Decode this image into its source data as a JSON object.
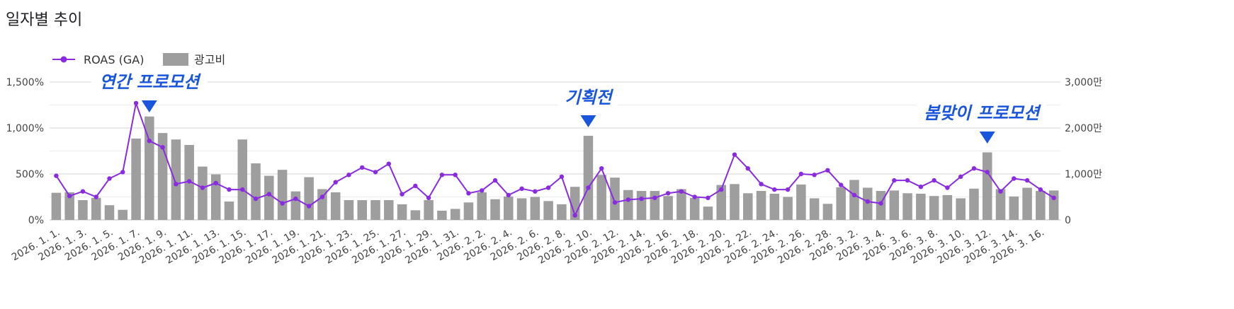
{
  "page": {
    "title": "일자별 추이"
  },
  "chart_data": {
    "type": "bar+line",
    "title": "일자별 추이",
    "legend": {
      "placement": "top-left",
      "items": [
        {
          "name": "ROAS (GA)",
          "kind": "line",
          "color": "#8a2be2"
        },
        {
          "name": "광고비",
          "kind": "bar",
          "color": "#9e9e9e"
        }
      ]
    },
    "grid": true,
    "y_left": {
      "ticks": [
        0,
        500,
        1000,
        1500
      ],
      "tick_labels": [
        "0%",
        "500%",
        "1,000%",
        "1,500%"
      ],
      "lim": [
        0,
        1500
      ]
    },
    "y_right": {
      "ticks": [
        0,
        1000,
        2000,
        3000
      ],
      "tick_labels": [
        "0",
        "1,000만",
        "2,000만",
        "3,000만"
      ],
      "lim": [
        0,
        3000
      ]
    },
    "x_tick_labels": [
      "2026. 1. 1.",
      "2026. 1. 3.",
      "2026. 1. 5.",
      "2026. 1. 7.",
      "2026. 1. 9.",
      "2026. 1. 11.",
      "2026. 1. 13.",
      "2026. 1. 15.",
      "2026. 1. 17.",
      "2026. 1. 19.",
      "2026. 1. 21.",
      "2026. 1. 23.",
      "2026. 1. 25.",
      "2026. 1. 27.",
      "2026. 1. 29.",
      "2026. 1. 31.",
      "2026. 2. 2.",
      "2026. 2. 4.",
      "2026. 2. 6.",
      "2026. 2. 8.",
      "2026. 2. 10.",
      "2026. 2. 12.",
      "2026. 2. 14.",
      "2026. 2. 16.",
      "2026. 2. 18.",
      "2026. 2. 20.",
      "2026. 2. 22.",
      "2026. 2. 24.",
      "2026. 2. 26.",
      "2026. 2. 28.",
      "2026. 3. 2.",
      "2026. 3. 4.",
      "2026. 3. 6.",
      "2026. 3. 8.",
      "2026. 3. 10.",
      "2026. 3. 12.",
      "2026. 3. 14.",
      "2026. 3. 16."
    ],
    "x_dates": [
      "2026-01-01",
      "2026-01-02",
      "2026-01-03",
      "2026-01-04",
      "2026-01-05",
      "2026-01-06",
      "2026-01-07",
      "2026-01-08",
      "2026-01-09",
      "2026-01-10",
      "2026-01-11",
      "2026-01-12",
      "2026-01-13",
      "2026-01-14",
      "2026-01-15",
      "2026-01-16",
      "2026-01-17",
      "2026-01-18",
      "2026-01-19",
      "2026-01-20",
      "2026-01-21",
      "2026-01-22",
      "2026-01-23",
      "2026-01-24",
      "2026-01-25",
      "2026-01-26",
      "2026-01-27",
      "2026-01-28",
      "2026-01-29",
      "2026-01-30",
      "2026-01-31",
      "2026-02-01",
      "2026-02-02",
      "2026-02-03",
      "2026-02-04",
      "2026-02-05",
      "2026-02-06",
      "2026-02-07",
      "2026-02-08",
      "2026-02-09",
      "2026-02-10",
      "2026-02-11",
      "2026-02-12",
      "2026-02-13",
      "2026-02-14",
      "2026-02-15",
      "2026-02-16",
      "2026-02-17",
      "2026-02-18",
      "2026-02-19",
      "2026-02-20",
      "2026-02-21",
      "2026-02-22",
      "2026-02-23",
      "2026-02-24",
      "2026-02-25",
      "2026-02-26",
      "2026-02-27",
      "2026-02-28",
      "2026-03-01",
      "2026-03-02",
      "2026-03-03",
      "2026-03-04",
      "2026-03-05",
      "2026-03-06",
      "2026-03-07",
      "2026-03-08",
      "2026-03-09",
      "2026-03-10",
      "2026-03-11",
      "2026-03-12",
      "2026-03-13",
      "2026-03-14",
      "2026-03-15",
      "2026-03-16",
      "2026-03-17"
    ],
    "series": [
      {
        "name": "광고비",
        "type": "bar",
        "axis": "right",
        "values": [
          590,
          600,
          430,
          480,
          320,
          220,
          1770,
          2250,
          1890,
          1750,
          1630,
          1160,
          990,
          400,
          1750,
          1230,
          960,
          1090,
          620,
          930,
          670,
          600,
          430,
          430,
          430,
          430,
          340,
          210,
          430,
          200,
          240,
          380,
          600,
          450,
          510,
          470,
          500,
          410,
          340,
          720,
          1830,
          980,
          920,
          650,
          630,
          630,
          520,
          670,
          480,
          290,
          760,
          780,
          580,
          630,
          570,
          500,
          770,
          470,
          350,
          710,
          870,
          700,
          630,
          640,
          580,
          570,
          520,
          540,
          470,
          680,
          1470,
          670,
          510,
          700,
          630,
          640
        ]
      },
      {
        "name": "ROAS (GA)",
        "type": "line",
        "axis": "left",
        "values": [
          480,
          260,
          310,
          250,
          450,
          520,
          1270,
          860,
          790,
          390,
          420,
          350,
          400,
          330,
          330,
          230,
          280,
          180,
          230,
          150,
          250,
          410,
          490,
          570,
          520,
          610,
          280,
          370,
          240,
          490,
          490,
          290,
          320,
          430,
          270,
          340,
          310,
          350,
          470,
          50,
          350,
          560,
          190,
          220,
          230,
          240,
          290,
          310,
          250,
          240,
          330,
          710,
          560,
          390,
          330,
          330,
          500,
          490,
          540,
          380,
          270,
          200,
          180,
          430,
          430,
          360,
          430,
          350,
          470,
          560,
          520,
          310,
          450,
          430,
          330,
          240
        ]
      }
    ],
    "annotations": [
      {
        "text": "연간 프로모션",
        "date": "2026-01-08",
        "marker": "triangle-down",
        "color": "#1a56db"
      },
      {
        "text": "기획전",
        "date": "2026-02-10",
        "marker": "triangle-down",
        "color": "#1a56db"
      },
      {
        "text": "봄맞이 프로모션",
        "date": "2026-03-12",
        "marker": "triangle-down",
        "color": "#1a56db"
      }
    ]
  }
}
